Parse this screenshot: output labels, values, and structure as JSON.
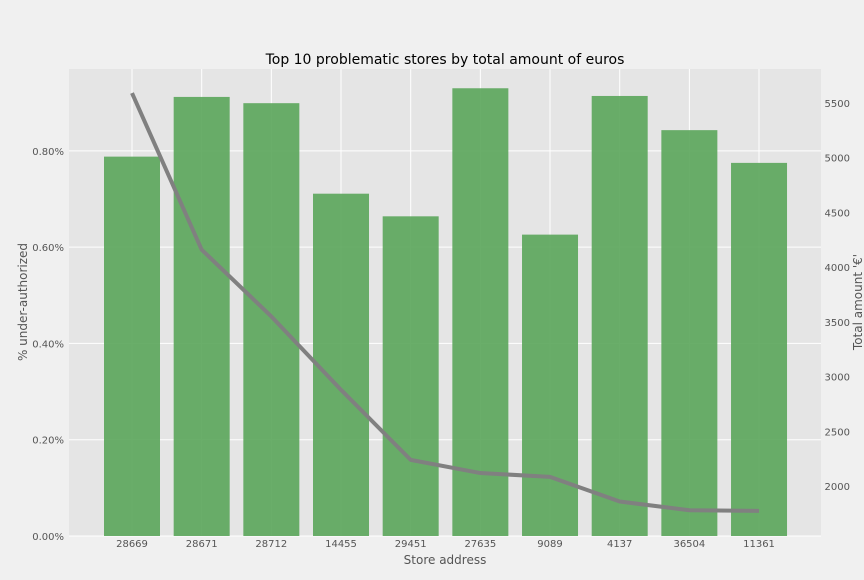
{
  "chart_data": {
    "type": "bar",
    "title": "Top 10 problematic stores by total amount of euros",
    "xlabel": "Store address",
    "ylabel_left": "% under-authorized",
    "ylabel_right": "Total amount '€'",
    "categories": [
      "28669",
      "28671",
      "28712",
      "14455",
      "29451",
      "27635",
      "9089",
      "4137",
      "36504",
      "11361"
    ],
    "series": [
      {
        "type": "bar",
        "axis": "left",
        "color": "#5aa55a",
        "values": [
          0.00788,
          0.00912,
          0.00899,
          0.00711,
          0.00664,
          0.0093,
          0.00626,
          0.00914,
          0.00843,
          0.00775
        ]
      },
      {
        "type": "line",
        "axis": "right",
        "color": "#808080",
        "values": [
          5590,
          4160,
          3550,
          2880,
          2240,
          2120,
          2085,
          1860,
          1780,
          1775
        ]
      }
    ],
    "y_left": {
      "ylim": [
        0,
        0.0097
      ],
      "ticks": [
        0,
        0.002,
        0.004,
        0.006,
        0.008
      ],
      "tick_labels": [
        "0.00%",
        "0.20%",
        "0.40%",
        "0.60%",
        "0.80%"
      ]
    },
    "y_right": {
      "ylim": [
        1545,
        5810
      ],
      "ticks": [
        2000,
        2500,
        3000,
        3500,
        4000,
        4500,
        5000,
        5500
      ],
      "tick_labels": [
        "2000",
        "2500",
        "3000",
        "3500",
        "4000",
        "4500",
        "5000",
        "5500"
      ]
    },
    "grid": true,
    "colors": {
      "figure_bg": "#f0f0f0",
      "plot_bg": "#e5e5e5",
      "grid": "#ffffff",
      "text": "#555555",
      "title": "#000000"
    }
  }
}
